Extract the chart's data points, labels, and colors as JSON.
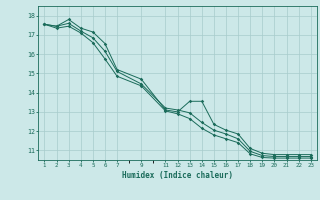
{
  "title": "",
  "xlabel": "Humidex (Indice chaleur)",
  "ylabel": "",
  "bg_color": "#cce8e8",
  "grid_color": "#a8cccc",
  "line_color": "#1a6b5a",
  "x_ticks": [
    1,
    2,
    3,
    4,
    5,
    6,
    7,
    9,
    11,
    12,
    13,
    14,
    15,
    16,
    17,
    18,
    19,
    20,
    21,
    22,
    23
  ],
  "ylim": [
    10.5,
    18.5
  ],
  "xlim": [
    0.5,
    23.5
  ],
  "yticks": [
    11,
    12,
    13,
    14,
    15,
    16,
    17,
    18
  ],
  "line1_x": [
    1,
    2,
    3,
    4,
    5,
    6,
    7,
    9,
    11,
    12,
    13,
    14,
    15,
    16,
    17,
    18,
    19,
    20,
    21,
    22,
    23
  ],
  "line1_y": [
    17.55,
    17.45,
    17.8,
    17.35,
    17.15,
    16.55,
    15.2,
    14.7,
    13.1,
    13.0,
    13.55,
    13.55,
    12.35,
    12.05,
    11.85,
    11.1,
    10.85,
    10.78,
    10.78,
    10.78,
    10.78
  ],
  "line2_x": [
    1,
    2,
    3,
    4,
    5,
    6,
    7,
    9,
    11,
    12,
    13,
    14,
    15,
    16,
    17,
    18,
    19,
    20,
    21,
    22,
    23
  ],
  "line2_y": [
    17.55,
    17.45,
    17.6,
    17.2,
    16.85,
    16.15,
    15.1,
    14.45,
    13.2,
    13.1,
    12.95,
    12.45,
    12.05,
    11.85,
    11.6,
    10.95,
    10.73,
    10.68,
    10.68,
    10.68,
    10.68
  ],
  "line3_x": [
    1,
    2,
    3,
    4,
    5,
    6,
    7,
    9,
    11,
    12,
    13,
    14,
    15,
    16,
    17,
    18,
    19,
    20,
    21,
    22,
    23
  ],
  "line3_y": [
    17.55,
    17.35,
    17.45,
    17.1,
    16.6,
    15.75,
    14.85,
    14.35,
    13.05,
    12.9,
    12.65,
    12.15,
    11.8,
    11.6,
    11.4,
    10.82,
    10.63,
    10.6,
    10.6,
    10.6,
    10.6
  ]
}
